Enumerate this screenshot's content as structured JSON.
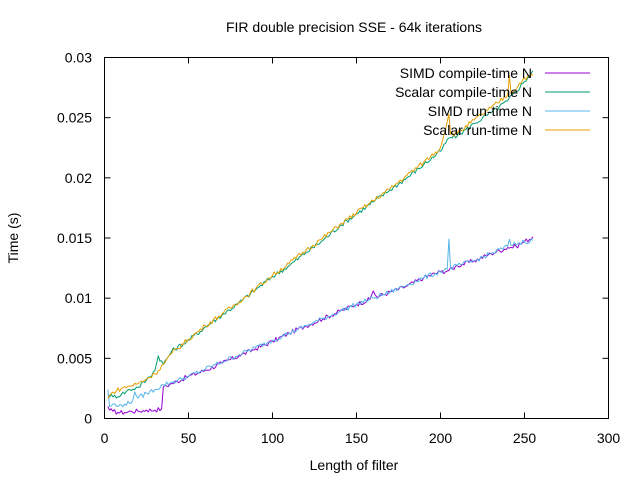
{
  "chart_data": {
    "type": "line",
    "title": "FIR double precision SSE - 64k iterations",
    "xlabel": "Length of filter",
    "ylabel": "Time (s)",
    "xlim": [
      0,
      300
    ],
    "ylim": [
      0,
      0.03
    ],
    "xticks": [
      0,
      50,
      100,
      150,
      200,
      250,
      300
    ],
    "xtick_labels": [
      "0",
      "50",
      "100",
      "150",
      "200",
      "250",
      "300"
    ],
    "yticks": [
      0,
      0.005,
      0.01,
      0.015,
      0.02,
      0.025,
      0.03
    ],
    "ytick_labels": [
      "0",
      "0.005",
      "0.01",
      "0.015",
      "0.02",
      "0.025",
      "0.03"
    ],
    "grid": false,
    "legend_position": "top-right",
    "series": [
      {
        "name": "SIMD compile-time N",
        "color": "#9400d3",
        "points": [
          [
            2,
            0.001
          ],
          [
            3,
            0.0007
          ],
          [
            5,
            0.0006
          ],
          [
            8,
            0.0005
          ],
          [
            12,
            0.0005
          ],
          [
            16,
            0.0006
          ],
          [
            20,
            0.0006
          ],
          [
            25,
            0.0007
          ],
          [
            30,
            0.0007
          ],
          [
            34,
            0.0008
          ],
          [
            35,
            0.0026
          ],
          [
            40,
            0.0029
          ],
          [
            50,
            0.0035
          ],
          [
            60,
            0.004
          ],
          [
            70,
            0.0046
          ],
          [
            80,
            0.0052
          ],
          [
            90,
            0.0058
          ],
          [
            100,
            0.0064
          ],
          [
            110,
            0.0071
          ],
          [
            120,
            0.0077
          ],
          [
            130,
            0.0083
          ],
          [
            140,
            0.0089
          ],
          [
            150,
            0.0095
          ],
          [
            158,
            0.0099
          ],
          [
            160,
            0.0106
          ],
          [
            162,
            0.0101
          ],
          [
            170,
            0.0105
          ],
          [
            180,
            0.011
          ],
          [
            190,
            0.0117
          ],
          [
            200,
            0.0122
          ],
          [
            205,
            0.0123
          ],
          [
            210,
            0.0127
          ],
          [
            220,
            0.0131
          ],
          [
            230,
            0.0137
          ],
          [
            240,
            0.0142
          ],
          [
            245,
            0.0143
          ],
          [
            250,
            0.0147
          ],
          [
            255,
            0.0151
          ]
        ]
      },
      {
        "name": "Scalar compile-time N",
        "color": "#009e73",
        "points": [
          [
            2,
            0.002
          ],
          [
            5,
            0.0018
          ],
          [
            10,
            0.002
          ],
          [
            15,
            0.0024
          ],
          [
            20,
            0.0026
          ],
          [
            25,
            0.0032
          ],
          [
            30,
            0.004
          ],
          [
            32,
            0.0052
          ],
          [
            35,
            0.0045
          ],
          [
            40,
            0.0056
          ],
          [
            50,
            0.0065
          ],
          [
            60,
            0.0076
          ],
          [
            70,
            0.0086
          ],
          [
            80,
            0.0096
          ],
          [
            90,
            0.0107
          ],
          [
            100,
            0.0118
          ],
          [
            110,
            0.0127
          ],
          [
            120,
            0.0138
          ],
          [
            130,
            0.0148
          ],
          [
            140,
            0.016
          ],
          [
            150,
            0.017
          ],
          [
            160,
            0.018
          ],
          [
            170,
            0.019
          ],
          [
            180,
            0.02
          ],
          [
            190,
            0.0211
          ],
          [
            200,
            0.0222
          ],
          [
            205,
            0.0233
          ],
          [
            210,
            0.0235
          ],
          [
            220,
            0.0245
          ],
          [
            230,
            0.0254
          ],
          [
            240,
            0.0264
          ],
          [
            250,
            0.028
          ],
          [
            255,
            0.0289
          ]
        ]
      },
      {
        "name": "SIMD run-time N",
        "color": "#56b4e9",
        "points": [
          [
            2,
            0.0024
          ],
          [
            3,
            0.001
          ],
          [
            5,
            0.0012
          ],
          [
            8,
            0.001
          ],
          [
            12,
            0.0012
          ],
          [
            16,
            0.0013
          ],
          [
            18,
            0.0022
          ],
          [
            20,
            0.0017
          ],
          [
            25,
            0.0021
          ],
          [
            30,
            0.0024
          ],
          [
            35,
            0.0028
          ],
          [
            40,
            0.003
          ],
          [
            50,
            0.0035
          ],
          [
            60,
            0.0041
          ],
          [
            70,
            0.0047
          ],
          [
            80,
            0.0053
          ],
          [
            90,
            0.0059
          ],
          [
            100,
            0.0065
          ],
          [
            110,
            0.0071
          ],
          [
            120,
            0.0077
          ],
          [
            130,
            0.0083
          ],
          [
            140,
            0.0089
          ],
          [
            150,
            0.0095
          ],
          [
            160,
            0.01
          ],
          [
            170,
            0.0105
          ],
          [
            180,
            0.0111
          ],
          [
            190,
            0.0117
          ],
          [
            200,
            0.0122
          ],
          [
            204,
            0.0124
          ],
          [
            205,
            0.0149
          ],
          [
            206,
            0.0125
          ],
          [
            210,
            0.0127
          ],
          [
            220,
            0.0131
          ],
          [
            230,
            0.0137
          ],
          [
            240,
            0.0143
          ],
          [
            241,
            0.0149
          ],
          [
            242,
            0.0144
          ],
          [
            250,
            0.0147
          ],
          [
            255,
            0.0148
          ]
        ]
      },
      {
        "name": "Scalar run-time N",
        "color": "#e69f00",
        "points": [
          [
            2,
            0.0017
          ],
          [
            5,
            0.0022
          ],
          [
            10,
            0.0025
          ],
          [
            15,
            0.0027
          ],
          [
            20,
            0.0029
          ],
          [
            25,
            0.0033
          ],
          [
            30,
            0.0037
          ],
          [
            35,
            0.0045
          ],
          [
            40,
            0.0054
          ],
          [
            50,
            0.0066
          ],
          [
            60,
            0.0077
          ],
          [
            70,
            0.0087
          ],
          [
            80,
            0.0097
          ],
          [
            90,
            0.0108
          ],
          [
            100,
            0.0119
          ],
          [
            110,
            0.0129
          ],
          [
            120,
            0.014
          ],
          [
            130,
            0.015
          ],
          [
            140,
            0.0161
          ],
          [
            150,
            0.0171
          ],
          [
            160,
            0.0181
          ],
          [
            170,
            0.0191
          ],
          [
            180,
            0.0202
          ],
          [
            190,
            0.0213
          ],
          [
            200,
            0.0225
          ],
          [
            205,
            0.0253
          ],
          [
            206,
            0.0236
          ],
          [
            210,
            0.0237
          ],
          [
            220,
            0.0248
          ],
          [
            230,
            0.0258
          ],
          [
            240,
            0.0269
          ],
          [
            241,
            0.0285
          ],
          [
            242,
            0.027
          ],
          [
            250,
            0.0283
          ],
          [
            255,
            0.0285
          ]
        ]
      }
    ]
  }
}
